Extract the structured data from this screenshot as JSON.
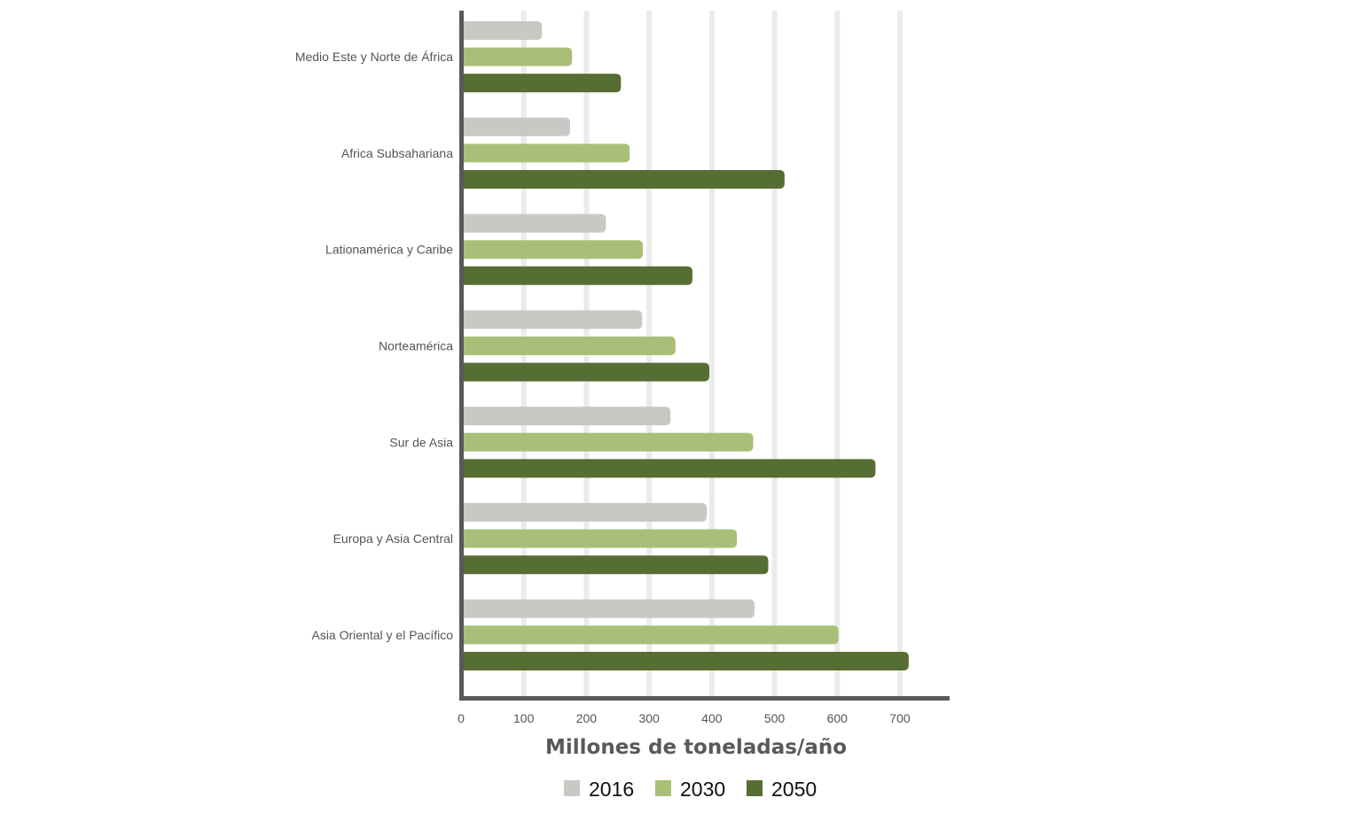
{
  "chart_data": {
    "type": "bar",
    "orientation": "horizontal",
    "title": "",
    "xlabel": "Millones de toneladas/año",
    "ylabel": "",
    "xlim": [
      0,
      780
    ],
    "xticks": [
      0,
      100,
      200,
      300,
      400,
      500,
      600,
      700
    ],
    "grid": true,
    "legend_position": "bottom",
    "categories": [
      "Medio Este y Norte de África",
      "Africa Subsahariana",
      "Lationamérica y Caribe",
      "Norteamérica",
      "Sur de Asia",
      "Europa y Asia Central",
      "Asia Oriental y el Pacífico"
    ],
    "series": [
      {
        "name": "2016",
        "color": "#c9c8c4",
        "values": [
          129,
          174,
          231,
          289,
          334,
          392,
          468
        ]
      },
      {
        "name": "2030",
        "color": "#a9bf77",
        "values": [
          177,
          269,
          290,
          342,
          466,
          440,
          602
        ]
      },
      {
        "name": "2050",
        "color": "#566d33",
        "values": [
          255,
          516,
          369,
          396,
          661,
          490,
          714
        ]
      }
    ]
  }
}
